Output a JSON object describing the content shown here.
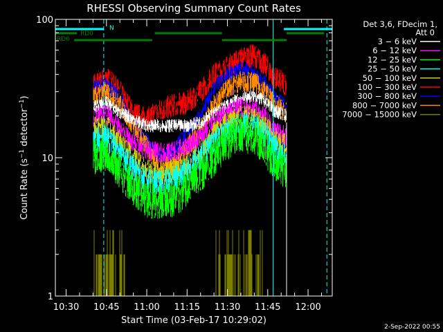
{
  "chart_data": {
    "type": "line",
    "title": "RHESSI Observing Summary Count Rates",
    "xlabel": "Start Time (03-Feb-17 10:29:02)",
    "ylabel": "Count Rate (s⁻¹ detector⁻¹)",
    "ylabel_main": "Count Rate (s",
    "ylabel_sup1": "−1",
    "ylabel_mid": " detector",
    "ylabel_sup2": "−1",
    "ylabel_end": ")",
    "yscale": "log",
    "ylim": [
      1,
      100
    ],
    "xlim": [
      "10:26",
      "12:09"
    ],
    "x_ticks": [
      "10:30",
      "10:45",
      "11:00",
      "11:15",
      "11:30",
      "11:45",
      "12:00"
    ],
    "y_ticks": [
      "1",
      "10",
      "100"
    ],
    "legend": {
      "position": "right",
      "header": [
        "Det 3,6, FDecim 1,",
        "Att 0"
      ],
      "entries": [
        {
          "label": "3 − 6 keV",
          "color": "#ffffff"
        },
        {
          "label": "6 − 12 keV",
          "color": "#ff00ff"
        },
        {
          "label": "12 − 25 keV",
          "color": "#00ff00"
        },
        {
          "label": "25 − 50 keV",
          "color": "#00ffff"
        },
        {
          "label": "50 − 100 keV",
          "color": "#d2d200"
        },
        {
          "label": "100 − 300 keV",
          "color": "#ff0000"
        },
        {
          "label": "300 − 800 keV",
          "color": "#0000ff"
        },
        {
          "label": "800 − 7000 keV",
          "color": "#ff8c00"
        },
        {
          "label": "7000 − 15000 keV",
          "color": "#808000"
        }
      ]
    },
    "flags": [
      {
        "label": "N",
        "color": "#00ffff",
        "segments": [
          [
            "10:26",
            "10:44"
          ],
          [
            "11:51",
            "12:09"
          ]
        ]
      },
      {
        "label": "RD0",
        "color": "#008000",
        "segments": [
          [
            "10:26",
            "10:34"
          ],
          [
            "11:03",
            "11:28"
          ],
          [
            "11:52",
            "12:06"
          ]
        ]
      },
      {
        "label": "RD6",
        "color": "#008000",
        "segments": [
          [
            "10:33",
            "11:02"
          ],
          [
            "11:28",
            "11:52"
          ]
        ]
      }
    ],
    "vlines": [
      {
        "x": "10:26",
        "color": "#00ffff",
        "style": "solid"
      },
      {
        "x": "10:44",
        "color": "#00ffff",
        "style": "dashed"
      },
      {
        "x": "11:47",
        "color": "#00ffff",
        "style": "solid"
      },
      {
        "x": "12:07",
        "color": "#00ffff",
        "style": "dashed"
      }
    ],
    "data_window": [
      "10:40",
      "11:52"
    ],
    "series": [
      {
        "name": "100 − 300 keV",
        "color": "#ff0000",
        "noise": 0.09,
        "x": [
          "10:40",
          "10:45",
          "10:50",
          "10:55",
          "11:00",
          "11:05",
          "11:10",
          "11:15",
          "11:20",
          "11:25",
          "11:30",
          "11:35",
          "11:40",
          "11:45",
          "11:47",
          "11:52"
        ],
        "y": [
          33,
          38,
          30,
          21,
          19,
          22,
          24,
          25,
          30,
          40,
          45,
          52,
          55,
          45,
          38,
          34
        ]
      },
      {
        "name": "300 − 800 keV",
        "color": "#0000ff",
        "noise": 0.06,
        "x": [
          "10:40",
          "10:45",
          "10:50",
          "10:55",
          "11:00",
          "11:05",
          "11:10",
          "11:15",
          "11:20",
          "11:25",
          "11:30",
          "11:35",
          "11:40",
          "11:45",
          "11:47",
          "11:52"
        ],
        "y": [
          32,
          34,
          27,
          18,
          13,
          10,
          11,
          16,
          20,
          32,
          40,
          44,
          41,
          33,
          28,
          23
        ]
      },
      {
        "name": "800 − 7000 keV",
        "color": "#ff8c00",
        "noise": 0.08,
        "x": [
          "10:40",
          "10:45",
          "10:50",
          "10:55",
          "11:00",
          "11:05",
          "11:10",
          "11:15",
          "11:20",
          "11:25",
          "11:30",
          "11:35",
          "11:40",
          "11:45",
          "11:47",
          "11:52"
        ],
        "y": [
          27,
          30,
          24,
          17,
          12,
          8.5,
          9,
          12,
          16,
          24,
          32,
          36,
          35,
          29,
          25,
          21
        ]
      },
      {
        "name": "3 − 6 keV",
        "color": "#ffffff",
        "noise": 0.05,
        "x": [
          "10:40",
          "10:45",
          "10:50",
          "10:55",
          "11:00",
          "11:05",
          "11:10",
          "11:15",
          "11:20",
          "11:25",
          "11:30",
          "11:35",
          "11:40",
          "11:45",
          "11:47",
          "11:52"
        ],
        "y": [
          23,
          25,
          21,
          19,
          17,
          17,
          17,
          17,
          18,
          21,
          24,
          27,
          28,
          25,
          22,
          20
        ]
      },
      {
        "name": "6 − 12 keV",
        "color": "#ff00ff",
        "noise": 0.08,
        "x": [
          "10:40",
          "10:45",
          "10:50",
          "10:55",
          "11:00",
          "11:05",
          "11:10",
          "11:15",
          "11:20",
          "11:25",
          "11:30",
          "11:35",
          "11:40",
          "11:45",
          "11:47",
          "11:52"
        ],
        "y": [
          19,
          21,
          16,
          13,
          11,
          11,
          11,
          12,
          14,
          18,
          21,
          23,
          22,
          19,
          16,
          14
        ]
      },
      {
        "name": "50 − 100 keV",
        "color": "#d2d200",
        "noise": 0.09,
        "x": [
          "10:40",
          "10:45",
          "10:50",
          "10:55",
          "11:00",
          "11:05",
          "11:10",
          "11:15",
          "11:20",
          "11:25",
          "11:30",
          "11:35",
          "11:40",
          "11:45",
          "11:47",
          "11:52"
        ],
        "y": [
          16,
          17,
          13,
          10,
          8,
          7.5,
          8,
          9,
          11,
          15,
          18,
          20,
          19,
          16,
          14,
          12
        ]
      },
      {
        "name": "25 − 50 keV",
        "color": "#00ffff",
        "noise": 0.1,
        "x": [
          "10:40",
          "10:45",
          "10:50",
          "10:55",
          "11:00",
          "11:05",
          "11:10",
          "11:15",
          "11:20",
          "11:25",
          "11:30",
          "11:35",
          "11:40",
          "11:45",
          "11:47",
          "11:52"
        ],
        "y": [
          13,
          14,
          11,
          8.5,
          7,
          6.5,
          7,
          8,
          10,
          13,
          15,
          17,
          17,
          14,
          12,
          10
        ]
      },
      {
        "name": "12 − 25 keV",
        "color": "#00ff00",
        "noise": 0.14,
        "x": [
          "10:40",
          "10:45",
          "10:50",
          "10:55",
          "11:00",
          "11:05",
          "11:10",
          "11:15",
          "11:20",
          "11:25",
          "11:30",
          "11:35",
          "11:40",
          "11:45",
          "11:47",
          "11:52"
        ],
        "y": [
          10,
          11,
          8,
          6,
          5,
          4.8,
          5,
          6,
          7.5,
          10,
          13,
          15,
          14,
          11,
          9.5,
          8
        ]
      }
    ],
    "sparse_series": {
      "name": "7000 − 15000 keV",
      "color": "#808000",
      "levels": [
        1,
        2,
        3
      ],
      "bursts": [
        [
          "10:40",
          "10:52"
        ],
        [
          "11:25",
          "11:43"
        ]
      ]
    },
    "footer_date": "2-Sep-2022 00:55"
  }
}
